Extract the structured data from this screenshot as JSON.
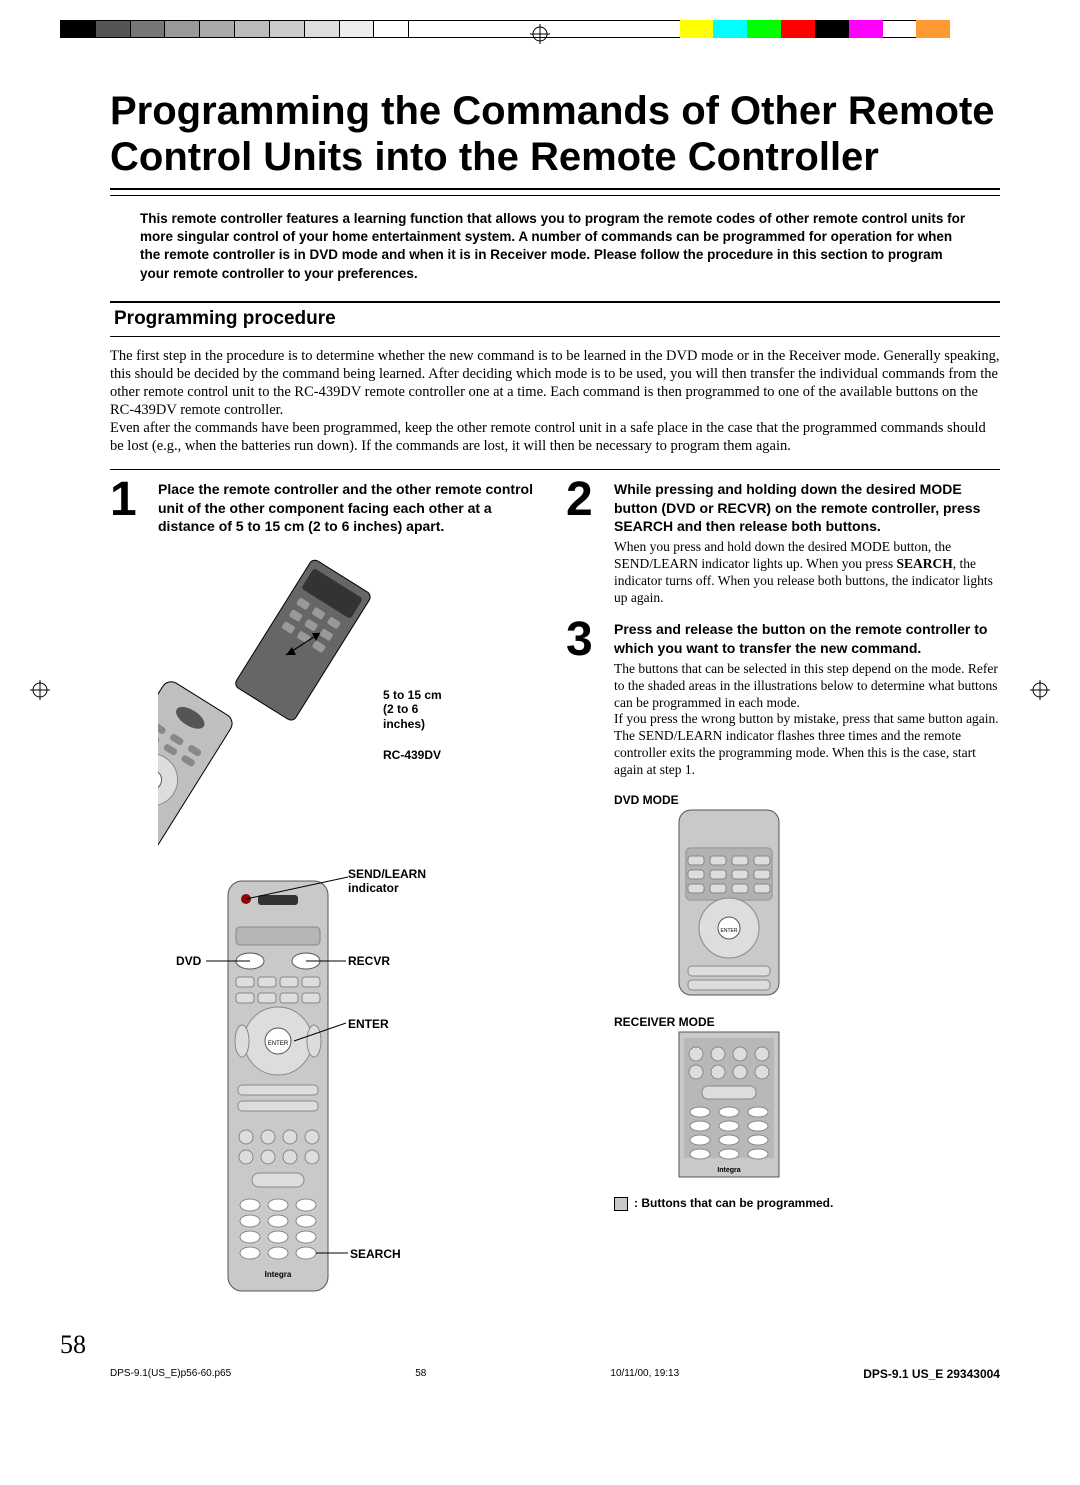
{
  "colorbar": [
    "#000000",
    "#555555",
    "#777777",
    "#999999",
    "#aaaaaa",
    "#bbbbbb",
    "#cccccc",
    "#dddddd",
    "#eeeeee",
    "#ffffff",
    "#ffffff",
    "#ffffff",
    "#ffffff",
    "#ffffff",
    "#ffffff",
    "#ffffff",
    "#ffffff",
    "#ffffff",
    "#ffff00",
    "#00ffff",
    "#00ff00",
    "#ff0000",
    "#000000",
    "#ff00ff",
    "#ffffff",
    "#ff9933"
  ],
  "title": "Programming the Commands of Other Remote Control Units into the Remote Controller",
  "intro": "This remote controller features a learning function that allows you to program the remote codes of other remote control units for more singular control of your home entertainment system. A number of commands can be programmed for operation for when the remote controller is in DVD mode and when it is in Receiver mode. Please follow the procedure in this section to program your remote controller to your preferences.",
  "section_title": "Programming procedure",
  "body": "The first step in the procedure is to determine whether the new command is to be learned in the DVD mode or in the Receiver mode. Generally speaking, this should be decided by the command being learned. After deciding which mode is to be used, you will then transfer the individual commands from the other remote control unit to the RC-439DV remote controller one at a time. Each command is then programmed to one of the available buttons on the RC-439DV remote controller.\nEven after the commands have been programmed, keep the other remote control unit in a safe place in the case that the programmed commands should be lost (e.g., when the batteries run down). If the commands are lost, it will then be necessary to program them again.",
  "steps": {
    "s1": {
      "num": "1",
      "head": "Place the remote controller and the other remote control unit of the other component facing each other at a distance of 5 to 15 cm (2 to 6 inches) apart.",
      "label_distance": "5 to 15 cm\n(2 to 6\ninches)",
      "label_model": "RC-439DV",
      "label_sendlearn": "SEND/LEARN\nindicator",
      "label_dvd": "DVD",
      "label_recvr": "RECVR",
      "label_enter": "ENTER",
      "label_search": "SEARCH"
    },
    "s2": {
      "num": "2",
      "head": "While pressing and holding down the desired MODE button (DVD or RECVR) on the remote controller, press SEARCH and then release both buttons.",
      "detail": "When you press and hold down the desired MODE button, the SEND/LEARN indicator lights up. When you press SEARCH, the indicator turns off. When you release both buttons, the indicator lights up again."
    },
    "s3": {
      "num": "3",
      "head": "Press and release the button on the remote controller to which you want to transfer the new command.",
      "detail": "The buttons that can be selected in this step depend on the mode. Refer to the shaded areas in the illustrations below to determine what buttons can be programmed in each mode.\nIf you press the wrong button by mistake, press that same button again. The SEND/LEARN indicator flashes three times and the remote controller exits the programming mode. When this is the case, start again at step 1."
    }
  },
  "mode_labels": {
    "dvd": "DVD MODE",
    "receiver": "RECEIVER MODE",
    "legend": ": Buttons that can be programmed."
  },
  "page_number": "58",
  "footer": {
    "left": "DPS-9.1(US_E)p56-60.p65",
    "mid_page": "58",
    "timestamp": "10/11/00, 19:13",
    "right": "DPS-9.1 US_E  29343004"
  },
  "search_bold": "SEARCH"
}
